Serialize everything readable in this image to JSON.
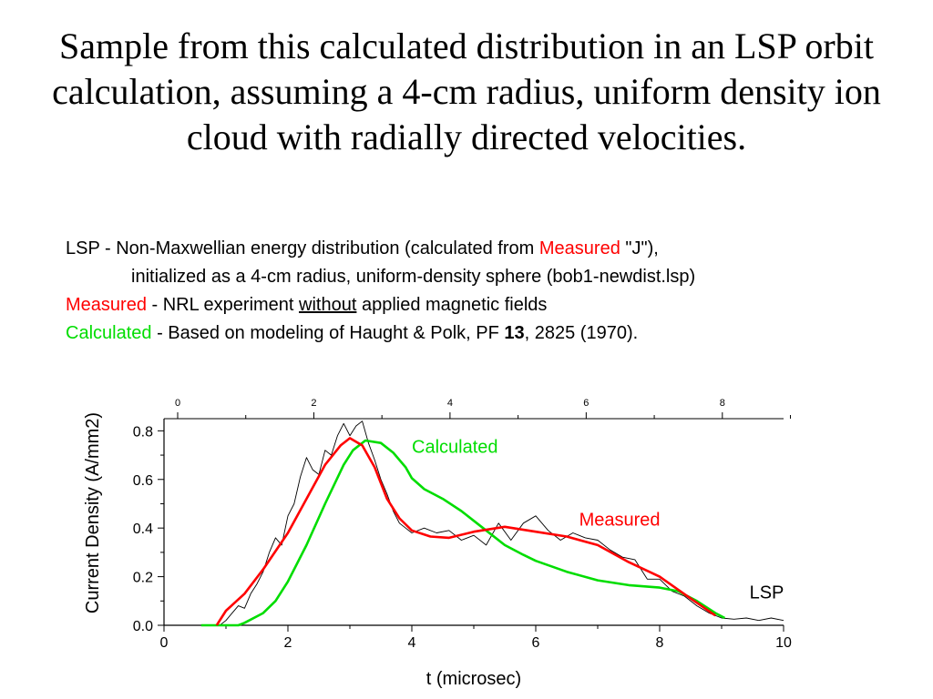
{
  "slide": {
    "title": "Sample from this calculated distribution in an LSP orbit calculation, assuming a 4-cm radius, uniform density ion cloud with radially directed velocities."
  },
  "legend": {
    "line1": {
      "a": "LSP - Non-Maxwellian energy distribution (calculated from ",
      "measured": "Measured",
      "b": " \"J\"),"
    },
    "line2": "initialized as a 4-cm radius, uniform-density sphere (bob1-newdist.lsp)",
    "line3": {
      "measured": "Measured",
      "a": " - NRL experiment ",
      "without": "without",
      "b": " applied magnetic fields"
    },
    "line4": {
      "calculated": "Calculated",
      "a": " - Based on modeling of Haught & Polk, PF ",
      "vol": "13",
      "b": ", 2825 (1970)."
    }
  },
  "colors": {
    "measured": "#ff0000",
    "calculated": "#00dd00",
    "lsp": "#000000"
  },
  "chart_data": {
    "type": "line",
    "xlabel": "t (microsec)",
    "ylabel": "Current Density (A/mm2)",
    "xlim": [
      0,
      10
    ],
    "ylim": [
      0,
      0.85
    ],
    "x_ticks": [
      0,
      2,
      4,
      6,
      8,
      10
    ],
    "y_ticks": [
      0.0,
      0.2,
      0.4,
      0.6,
      0.8
    ],
    "x_tick_labels": [
      "0",
      "2",
      "4",
      "6",
      "8",
      "10"
    ],
    "y_tick_labels": [
      "0.0",
      "0.2",
      "0.4",
      "0.6",
      "0.8"
    ],
    "top_axis": {
      "ticks": [
        0,
        2,
        4,
        6,
        8
      ],
      "labels": [
        "0",
        "2",
        "4",
        "6",
        "8"
      ],
      "xlim": [
        0,
        9.1
      ]
    },
    "grid": false,
    "annotations": [
      {
        "text": "Calculated",
        "series": "Calculated",
        "x": 4.0,
        "y": 0.71
      },
      {
        "text": "Measured",
        "series": "Measured",
        "x": 6.7,
        "y": 0.41
      },
      {
        "text": "LSP",
        "series": "LSP",
        "x": 9.45,
        "y": 0.11
      }
    ],
    "series": [
      {
        "name": "Measured",
        "color": "#ff0000",
        "points": [
          [
            0.85,
            0.0
          ],
          [
            1.0,
            0.06
          ],
          [
            1.3,
            0.13
          ],
          [
            1.6,
            0.23
          ],
          [
            2.0,
            0.38
          ],
          [
            2.3,
            0.52
          ],
          [
            2.6,
            0.66
          ],
          [
            2.85,
            0.74
          ],
          [
            3.0,
            0.77
          ],
          [
            3.2,
            0.74
          ],
          [
            3.4,
            0.65
          ],
          [
            3.6,
            0.52
          ],
          [
            3.8,
            0.44
          ],
          [
            4.0,
            0.39
          ],
          [
            4.3,
            0.365
          ],
          [
            4.6,
            0.36
          ],
          [
            5.0,
            0.385
          ],
          [
            5.5,
            0.405
          ],
          [
            6.0,
            0.385
          ],
          [
            6.5,
            0.365
          ],
          [
            7.0,
            0.33
          ],
          [
            7.5,
            0.26
          ],
          [
            8.0,
            0.2
          ],
          [
            8.5,
            0.11
          ],
          [
            8.9,
            0.04
          ]
        ]
      },
      {
        "name": "Calculated",
        "color": "#00dd00",
        "points": [
          [
            0.6,
            0.0
          ],
          [
            1.2,
            0.0
          ],
          [
            1.3,
            0.01
          ],
          [
            1.6,
            0.05
          ],
          [
            1.8,
            0.1
          ],
          [
            2.0,
            0.18
          ],
          [
            2.3,
            0.33
          ],
          [
            2.6,
            0.5
          ],
          [
            2.9,
            0.66
          ],
          [
            3.05,
            0.72
          ],
          [
            3.25,
            0.76
          ],
          [
            3.5,
            0.75
          ],
          [
            3.7,
            0.71
          ],
          [
            3.9,
            0.65
          ],
          [
            4.0,
            0.605
          ],
          [
            4.2,
            0.56
          ],
          [
            4.5,
            0.52
          ],
          [
            4.8,
            0.47
          ],
          [
            5.0,
            0.43
          ],
          [
            5.3,
            0.37
          ],
          [
            5.5,
            0.33
          ],
          [
            5.8,
            0.29
          ],
          [
            6.0,
            0.265
          ],
          [
            6.5,
            0.22
          ],
          [
            7.0,
            0.185
          ],
          [
            7.5,
            0.165
          ],
          [
            8.0,
            0.155
          ],
          [
            8.3,
            0.14
          ],
          [
            8.6,
            0.1
          ],
          [
            8.9,
            0.05
          ],
          [
            9.05,
            0.03
          ]
        ]
      },
      {
        "name": "LSP",
        "color": "#000000",
        "points": [
          [
            0.9,
            0.0
          ],
          [
            1.0,
            0.02
          ],
          [
            1.1,
            0.05
          ],
          [
            1.2,
            0.08
          ],
          [
            1.3,
            0.07
          ],
          [
            1.4,
            0.13
          ],
          [
            1.5,
            0.17
          ],
          [
            1.6,
            0.22
          ],
          [
            1.7,
            0.3
          ],
          [
            1.8,
            0.36
          ],
          [
            1.9,
            0.33
          ],
          [
            2.0,
            0.45
          ],
          [
            2.1,
            0.5
          ],
          [
            2.2,
            0.61
          ],
          [
            2.3,
            0.69
          ],
          [
            2.4,
            0.64
          ],
          [
            2.5,
            0.62
          ],
          [
            2.6,
            0.72
          ],
          [
            2.7,
            0.7
          ],
          [
            2.8,
            0.78
          ],
          [
            2.9,
            0.83
          ],
          [
            3.0,
            0.78
          ],
          [
            3.1,
            0.82
          ],
          [
            3.2,
            0.84
          ],
          [
            3.3,
            0.75
          ],
          [
            3.4,
            0.68
          ],
          [
            3.5,
            0.6
          ],
          [
            3.6,
            0.54
          ],
          [
            3.7,
            0.47
          ],
          [
            3.8,
            0.42
          ],
          [
            3.9,
            0.4
          ],
          [
            4.0,
            0.38
          ],
          [
            4.2,
            0.4
          ],
          [
            4.4,
            0.38
          ],
          [
            4.6,
            0.39
          ],
          [
            4.8,
            0.35
          ],
          [
            5.0,
            0.37
          ],
          [
            5.2,
            0.33
          ],
          [
            5.4,
            0.42
          ],
          [
            5.6,
            0.35
          ],
          [
            5.8,
            0.42
          ],
          [
            6.0,
            0.45
          ],
          [
            6.2,
            0.39
          ],
          [
            6.4,
            0.35
          ],
          [
            6.6,
            0.38
          ],
          [
            6.8,
            0.36
          ],
          [
            7.0,
            0.35
          ],
          [
            7.2,
            0.31
          ],
          [
            7.4,
            0.28
          ],
          [
            7.6,
            0.27
          ],
          [
            7.8,
            0.19
          ],
          [
            8.0,
            0.19
          ],
          [
            8.2,
            0.14
          ],
          [
            8.4,
            0.12
          ],
          [
            8.6,
            0.08
          ],
          [
            8.8,
            0.05
          ],
          [
            9.0,
            0.03
          ],
          [
            9.2,
            0.025
          ],
          [
            9.4,
            0.03
          ],
          [
            9.6,
            0.02
          ],
          [
            9.8,
            0.03
          ],
          [
            10.0,
            0.02
          ]
        ]
      }
    ]
  }
}
